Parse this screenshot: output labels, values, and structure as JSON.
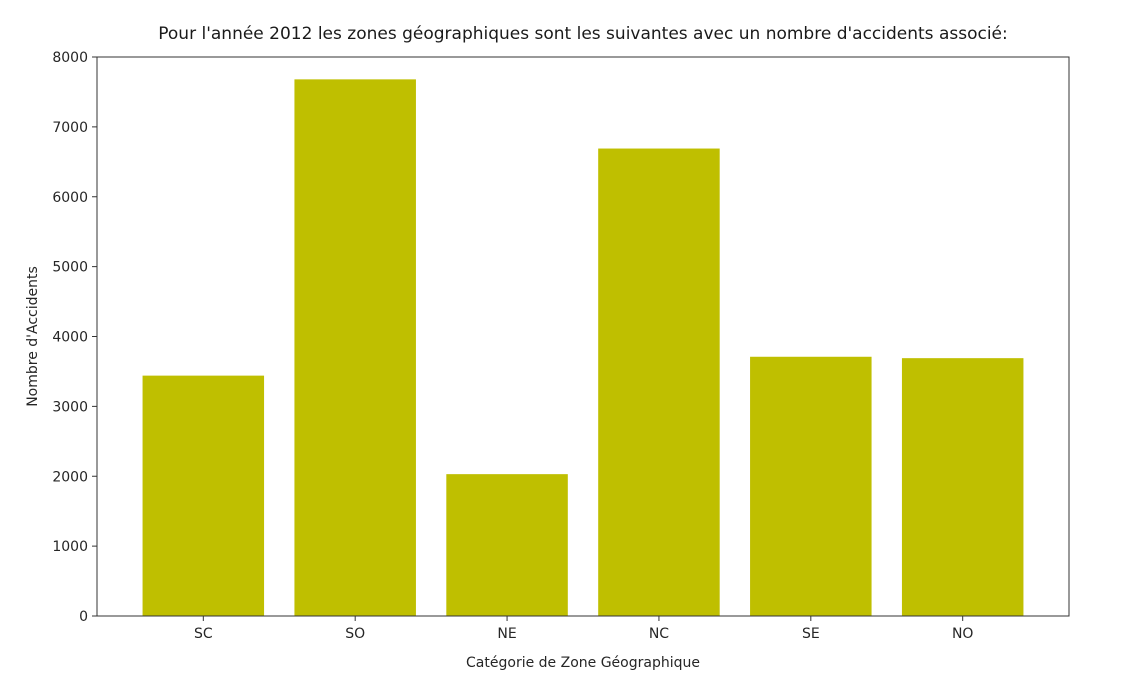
{
  "chart_data": {
    "type": "bar",
    "title": "Pour l'année 2012 les zones géographiques sont les suivantes avec un nombre d'accidents associé:",
    "xlabel": "Catégorie de Zone Géographique",
    "ylabel": "Nombre d'Accidents",
    "categories": [
      "SC",
      "SO",
      "NE",
      "NC",
      "SE",
      "NO"
    ],
    "values": [
      3440,
      7680,
      2030,
      6690,
      3710,
      3690
    ],
    "ylim": [
      0,
      8000
    ],
    "yticks": [
      0,
      1000,
      2000,
      3000,
      4000,
      5000,
      6000,
      7000,
      8000
    ],
    "bar_color": "#bfbf00",
    "grid": false,
    "legend": "none"
  }
}
